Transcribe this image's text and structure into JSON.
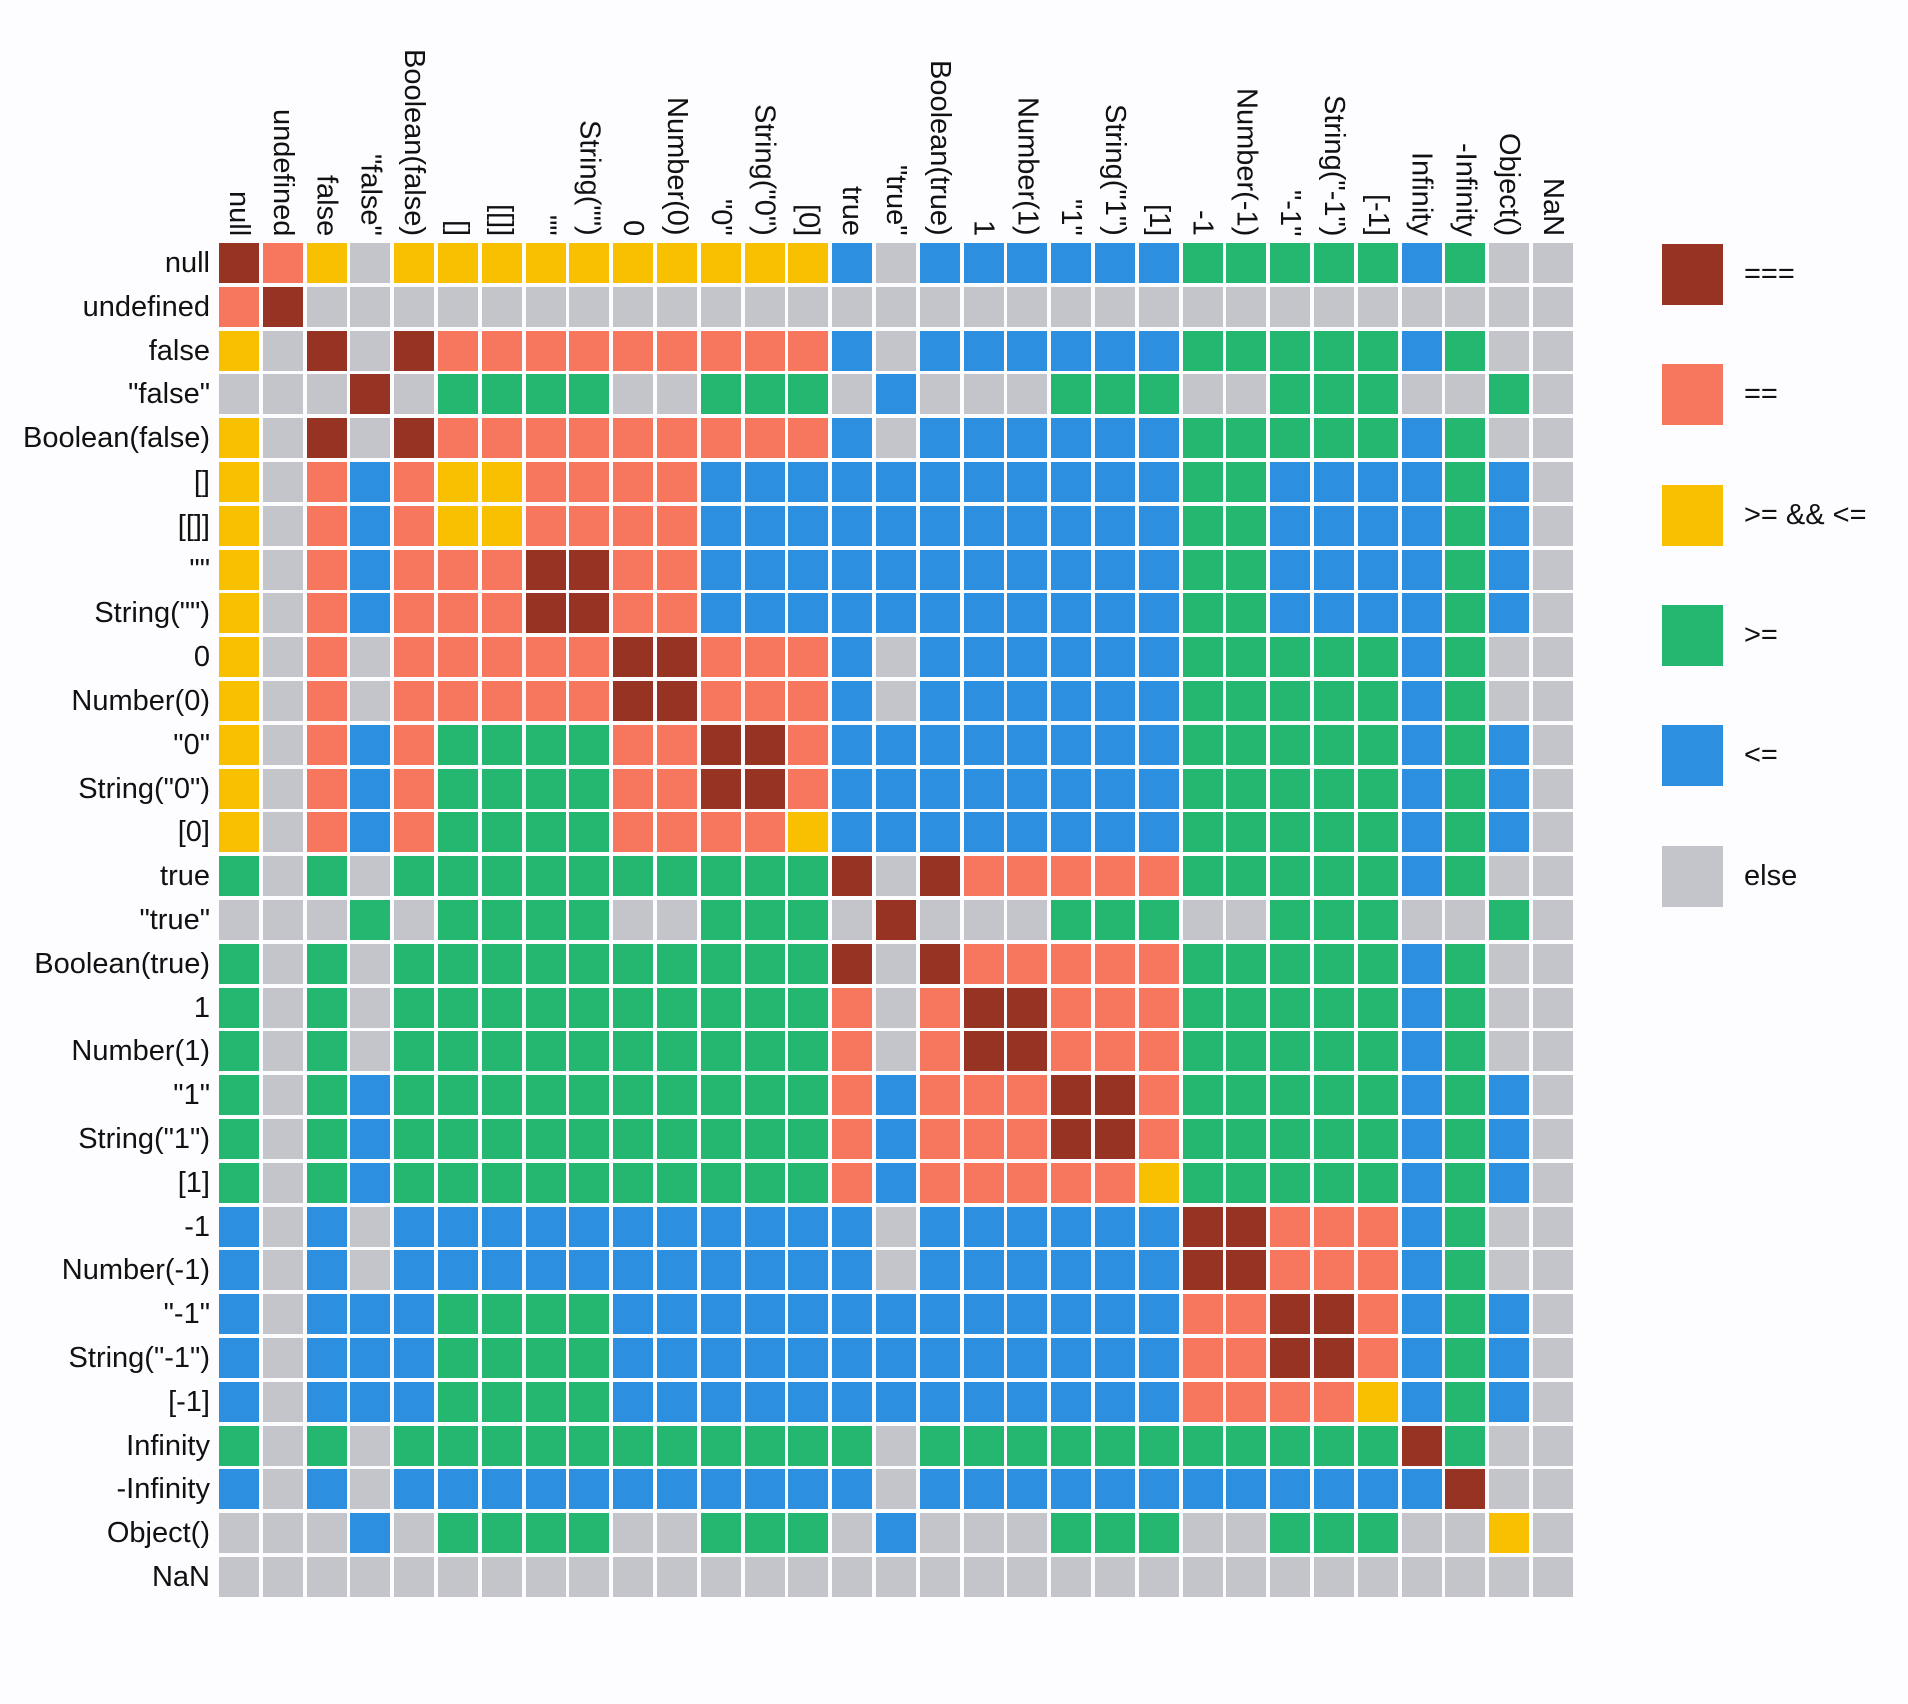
{
  "chart_data": {
    "type": "heatmap",
    "title": "",
    "labels": [
      "null",
      "undefined",
      "false",
      "\"false\"",
      "Boolean(false)",
      "[]",
      "[[]]",
      "\"\"",
      "String(\"\")",
      "0",
      "Number(0)",
      "\"0\"",
      "String(\"0\")",
      "[0]",
      "true",
      "\"true\"",
      "Boolean(true)",
      "1",
      "Number(1)",
      "\"1\"",
      "String(\"1\")",
      "[1]",
      "-1",
      "Number(-1)",
      "\"-1\"",
      "String(\"-1\")",
      "[-1]",
      "Infinity",
      "-Infinity",
      "Object()",
      "NaN"
    ],
    "legend": [
      {
        "code": "E",
        "label": "===",
        "color": "#973323"
      },
      {
        "code": "Q",
        "label": "==",
        "color": "#f7765e"
      },
      {
        "code": "Y",
        "label": ">= && <=",
        "color": "#f8c000"
      },
      {
        "code": "G",
        "label": ">=",
        "color": "#23b76f"
      },
      {
        "code": "B",
        "label": "<=",
        "color": "#2d8fe0"
      },
      {
        "code": "X",
        "label": "else",
        "color": "#c4c5cb"
      }
    ],
    "legend_placement": "right",
    "matrix": [
      "EQYXYYYYYYYYYYBXBBBBBBGGGGGBGXX",
      "QEXXXXXXXXXXXXXXXXXXXXXXXXXXXXX",
      "YXEXEQQQQQQQQQBXBBBBBBGGGGGBGXX",
      "XXXEXGGGGXXGGGXBXXXGGGXXGGGXXGX",
      "YXEXEQQQQQQQQQBXBBBBBBGGGGGBGXX",
      "YXQBQYYQQQQBBBBBBBBBBBGGBBBBGBX",
      "YXQBQYYQQQQBBBBBBBBBBBGGBBBBGBX",
      "YXQBQQQEEQQBBBBBBBBBBBGGBBBBGBX",
      "YXQBQQQEEQQBBBBBBBBBBBGGBBBBGBX",
      "YXQXQQQQQEEQQQBXBBBBBBGGGGGBGXX",
      "YXQXQQQQQEEQQQBXBBBBBBGGGGGBGXX",
      "YXQBQGGGGQQEEQBBBBBBBBGGGGGBGBX",
      "YXQBQGGGGQQEEQBBBBBBBBGGGGGBGBX",
      "YXQBQGGGGQQQQYBBBBBBBBGGGGGBGBX",
      "GXGXGGGGGGGGGGEXEQQQQQGGGGGBGXX",
      "XXXGXGGGGXXGGGXEXXXGGGXXGGGXXGX",
      "GXGXGGGGGGGGGGEXEQQQQQGGGGGBGXX",
      "GXGXGGGGGGGGGGQXQEEQQQGGGGGBGXX",
      "GXGXGGGGGGGGGGQXQEEQQQGGGGGBGXX",
      "GXGBGGGGGGGGGGQBQQQEEQGGGGGBGBX",
      "GXGBGGGGGGGGGGQBQQQEEQGGGGGBGBX",
      "GXGBGGGGGGGGGGQBQQQQQYGGGGGBGBX",
      "BXBXBBBBBBBBBBBXBBBBBBEEQQQBGXX",
      "BXBXBBBBBBBBBBBXBBBBBBEEQQQBGXX",
      "BXBBBGGGGBBBBBBBBBBBBBQQEEQBGBX",
      "BXBBBGGGGBBBBBBBBBBBBBQQEEQBGBX",
      "BXBBBGGGGBBBBBBBBBBBBBQQQQYBGBX",
      "GXGXGGGGGGGGGGGXGGGGGGGGGGGEGXX",
      "BXBXBBBBBBBBBBBXBBBBBBBBBBBBEXX",
      "XXXBXGGGGXXGGGXBXXXGGGXXGGGXXYX",
      "XXXXXXXXXXXXXXXXXXXXXXXXXXXXXXX"
    ]
  }
}
